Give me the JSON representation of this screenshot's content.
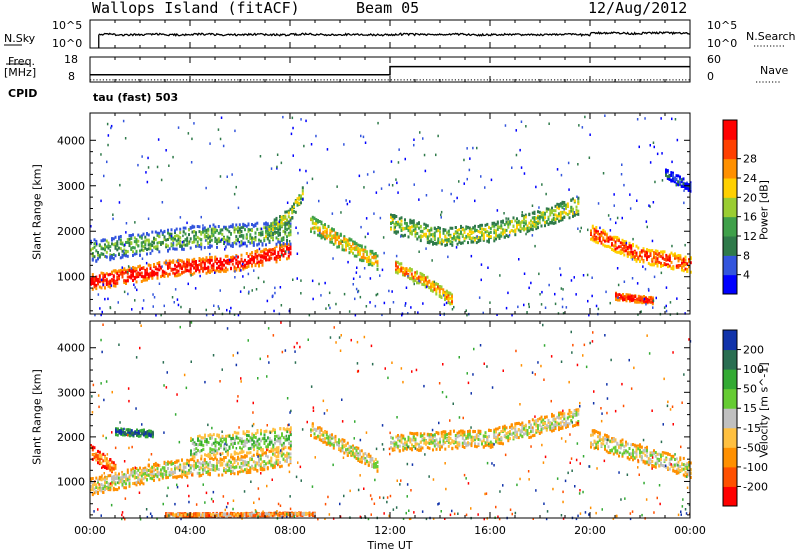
{
  "header": {
    "site": "Wallops Island (fitACF)",
    "beam": "Beam 05",
    "date": "12/Aug/2012"
  },
  "left_labels": {
    "nsky": "N.Sky",
    "freq_line1": "Freq.",
    "freq_line2": "[MHz]",
    "cpid": "CPID",
    "sky_top": "10^5",
    "sky_bottom": "10^0",
    "freq_top": "18",
    "freq_bottom": "8"
  },
  "right_labels": {
    "nsearch": "N.Search",
    "nave": "Nave",
    "search_top": "10^5",
    "search_bottom": "10^0",
    "nave_top": "60",
    "nave_bottom": "0"
  },
  "cpid_text": "tau (fast) 503",
  "colors": {
    "power": [
      "#0000ff",
      "#3355dd",
      "#2f7a4a",
      "#3fa04a",
      "#9acd32",
      "#ffd000",
      "#ff9000",
      "#ff4000",
      "#ff0000"
    ],
    "velocity": [
      "#ff0000",
      "#ff5000",
      "#ff9000",
      "#ffc040",
      "#c0c0c0",
      "#66cc33",
      "#33aa33",
      "#2a6e52",
      "#1133aa"
    ]
  },
  "chart_data": [
    {
      "type": "line",
      "name": "noise-panel",
      "series": [
        {
          "name": "N.Sky"
        },
        {
          "name": "N.Search"
        }
      ]
    },
    {
      "type": "line",
      "name": "frequency-nave-panel",
      "series": [
        {
          "name": "Freq.",
          "x": [
            "00:00",
            "12:00",
            "12:00",
            "24:00"
          ],
          "y": [
            10.5,
            10.5,
            14.4,
            14.4
          ]
        },
        {
          "name": "Nave",
          "x": [
            "00:00",
            "24:00"
          ],
          "y": [
            5,
            5
          ]
        }
      ]
    },
    {
      "type": "heatmap",
      "name": "power-panel",
      "ylabel": "Slant Range [km]",
      "yticks": [
        "1000",
        "2000",
        "3000",
        "4000"
      ],
      "ylim": [
        180,
        4600
      ],
      "colorbar_label": "Power [dB]",
      "colorbar_ticks": [
        "4",
        "8",
        "12",
        "16",
        "20",
        "24",
        "28"
      ],
      "bands": [
        {
          "t": [
            0,
            3,
            6,
            8
          ],
          "r": [
            900,
            1200,
            1350,
            1600
          ],
          "width": 350,
          "level": 8
        },
        {
          "t": [
            0,
            4,
            8
          ],
          "r": [
            1600,
            1900,
            2000
          ],
          "width": 500,
          "level": 3
        },
        {
          "t": [
            7,
            8,
            8.5
          ],
          "r": [
            2000,
            2400,
            2900
          ],
          "width": 300,
          "level": 4
        },
        {
          "t": [
            8.8,
            10,
            11.5
          ],
          "r": [
            2200,
            1800,
            1350
          ],
          "width": 350,
          "level": 5
        },
        {
          "t": [
            12,
            14,
            16,
            18,
            19.5
          ],
          "r": [
            2200,
            1900,
            2000,
            2300,
            2600
          ],
          "width": 400,
          "level": 4
        },
        {
          "t": [
            12.2,
            13.5,
            14.5
          ],
          "r": [
            1250,
            900,
            500
          ],
          "width": 250,
          "level": 6
        },
        {
          "t": [
            20,
            22,
            24
          ],
          "r": [
            2000,
            1500,
            1300
          ],
          "width": 350,
          "level": 7
        },
        {
          "t": [
            21,
            22.5
          ],
          "r": [
            600,
            500
          ],
          "width": 150,
          "level": 8
        },
        {
          "t": [
            23,
            24
          ],
          "r": [
            3300,
            3000
          ],
          "width": 200,
          "level": 1
        }
      ]
    },
    {
      "type": "heatmap",
      "name": "velocity-panel",
      "ylabel": "Slant Range [km]",
      "xlabel": "Time UT",
      "yticks": [
        "1000",
        "2000",
        "3000",
        "4000"
      ],
      "ylim": [
        180,
        4600
      ],
      "xticks": [
        "00:00",
        "04:00",
        "08:00",
        "12:00",
        "16:00",
        "20:00",
        "00:00"
      ],
      "colorbar_label": "Velocity [m s^-1]",
      "colorbar_ticks": [
        "-200",
        "-100",
        "-50",
        "-15",
        "15",
        "50",
        "100",
        "200"
      ],
      "bands": [
        {
          "t": [
            0,
            3,
            6,
            8
          ],
          "r": [
            900,
            1300,
            1400,
            1600
          ],
          "width": 400,
          "level": 4
        },
        {
          "t": [
            1,
            2.5
          ],
          "r": [
            2150,
            2100
          ],
          "width": 150,
          "level": 8
        },
        {
          "t": [
            4,
            8
          ],
          "r": [
            1800,
            2000
          ],
          "width": 500,
          "level": 5
        },
        {
          "t": [
            8.8,
            11.5
          ],
          "r": [
            2200,
            1400
          ],
          "width": 300,
          "level": 4
        },
        {
          "t": [
            12,
            16,
            19.5
          ],
          "r": [
            1900,
            2000,
            2500
          ],
          "width": 400,
          "level": 4
        },
        {
          "t": [
            20,
            24
          ],
          "r": [
            2000,
            1300
          ],
          "width": 400,
          "level": 4
        },
        {
          "t": [
            3,
            9
          ],
          "r": [
            280,
            300
          ],
          "width": 60,
          "level": 3
        },
        {
          "t": [
            0,
            1
          ],
          "r": [
            1700,
            1300
          ],
          "width": 300,
          "level": 2
        }
      ]
    }
  ]
}
